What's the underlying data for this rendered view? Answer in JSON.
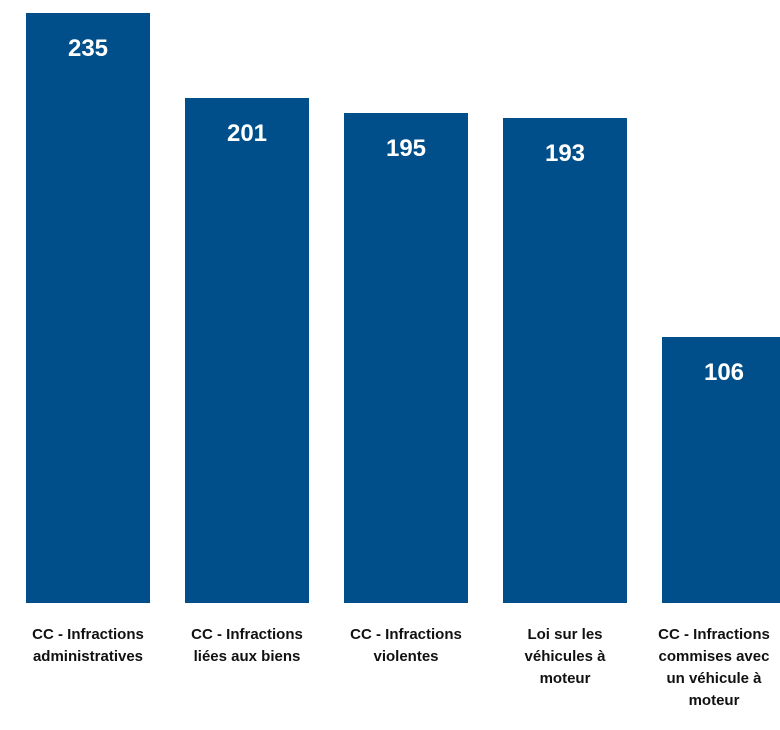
{
  "chart_data": {
    "type": "bar",
    "categories": [
      "CC - Infractions administratives",
      "CC - Infractions liées aux biens",
      "CC - Infractions violentes",
      "Loi sur les véhicules à moteur",
      "CC - Infractions commises avec un véhicule à moteur"
    ],
    "category_lines": [
      [
        "CC - Infractions",
        "administratives"
      ],
      [
        "CC - Infractions",
        "liées aux biens"
      ],
      [
        "CC - Infractions",
        "violentes"
      ],
      [
        "Loi sur les",
        "véhicules à",
        "moteur"
      ],
      [
        "CC - Infractions",
        "commises avec",
        "un véhicule à",
        "moteur"
      ]
    ],
    "values": [
      235,
      201,
      195,
      193,
      106
    ],
    "ylim": [
      0,
      240
    ],
    "bar_color": "#004f8a",
    "grid": false,
    "legend": "none"
  }
}
